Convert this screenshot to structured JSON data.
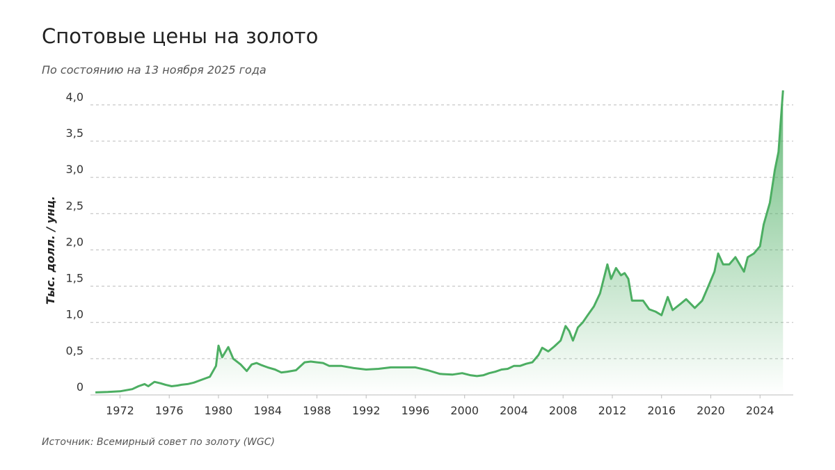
{
  "chart_data": {
    "type": "line",
    "title": "Спотовые цены на золото",
    "subtitle": "По состоянию на 13 ноября 2025 года",
    "y_label": "Тыс. долл. / унц.",
    "source": "Источник: Всемирный совет по золоту (WGC)",
    "color": "#4cae62",
    "x": [
      1970.0,
      1971,
      1972,
      1973,
      1973.5,
      1974,
      1974.3,
      1974.8,
      1975.3,
      1975.7,
      1976.2,
      1976.7,
      1977,
      1977.5,
      1978,
      1978.8,
      1979.3,
      1979.8,
      1980.0,
      1980.3,
      1980.8,
      1981.2,
      1981.8,
      1982.3,
      1982.7,
      1983.1,
      1983.5,
      1984,
      1984.6,
      1985.1,
      1985.6,
      1986.3,
      1987,
      1987.5,
      1988,
      1988.5,
      1989,
      1990,
      1991,
      1992,
      1993,
      1994,
      1995,
      1996,
      1997,
      1998,
      1999,
      1999.8,
      2000.5,
      2001,
      2001.5,
      2002,
      2002.5,
      2003,
      2003.5,
      2004,
      2004.5,
      2005,
      2005.5,
      2006,
      2006.3,
      2006.8,
      2007.3,
      2007.8,
      2008.2,
      2008.5,
      2008.8,
      2009.2,
      2009.6,
      2010,
      2010.5,
      2011,
      2011.6,
      2011.9,
      2012.3,
      2012.7,
      2013,
      2013.3,
      2013.6,
      2014,
      2014.5,
      2015,
      2015.5,
      2016,
      2016.5,
      2016.9,
      2017.5,
      2018,
      2018.7,
      2019.3,
      2019.8,
      2020.3,
      2020.6,
      2021,
      2021.5,
      2022,
      2022.7,
      2023,
      2023.5,
      2024,
      2024.3,
      2024.8,
      2025.2,
      2025.5,
      2025.87
    ],
    "values": [
      0.035,
      0.04,
      0.05,
      0.08,
      0.12,
      0.15,
      0.12,
      0.18,
      0.16,
      0.14,
      0.12,
      0.13,
      0.14,
      0.15,
      0.17,
      0.22,
      0.25,
      0.4,
      0.68,
      0.52,
      0.66,
      0.5,
      0.42,
      0.33,
      0.42,
      0.44,
      0.41,
      0.38,
      0.35,
      0.31,
      0.32,
      0.34,
      0.45,
      0.46,
      0.45,
      0.44,
      0.4,
      0.4,
      0.37,
      0.35,
      0.36,
      0.38,
      0.38,
      0.38,
      0.34,
      0.29,
      0.28,
      0.3,
      0.27,
      0.26,
      0.27,
      0.3,
      0.32,
      0.35,
      0.36,
      0.4,
      0.4,
      0.43,
      0.45,
      0.55,
      0.65,
      0.6,
      0.67,
      0.75,
      0.95,
      0.88,
      0.75,
      0.93,
      1.0,
      1.1,
      1.22,
      1.4,
      1.8,
      1.6,
      1.75,
      1.65,
      1.68,
      1.6,
      1.3,
      1.3,
      1.3,
      1.18,
      1.15,
      1.1,
      1.35,
      1.17,
      1.25,
      1.32,
      1.2,
      1.3,
      1.5,
      1.7,
      1.95,
      1.8,
      1.8,
      1.9,
      1.7,
      1.9,
      1.95,
      2.05,
      2.35,
      2.65,
      3.1,
      3.35,
      4.2
    ],
    "xlim": [
      1969.6,
      2026.7
    ],
    "xticks": [
      1972,
      1976,
      1980,
      1984,
      1988,
      1992,
      1996,
      2000,
      2004,
      2008,
      2012,
      2016,
      2020,
      2024
    ],
    "ylim": [
      0,
      4.2
    ],
    "yticks": [
      0,
      {
        "value": 0.5,
        "label": "0,5"
      },
      {
        "value": 1,
        "label": "1,0"
      },
      {
        "value": 1.5,
        "label": "1,5"
      },
      {
        "value": 2,
        "label": "2,0"
      },
      {
        "value": 2.5,
        "label": "2,5"
      },
      {
        "value": 3,
        "label": "3,0"
      },
      {
        "value": 3.5,
        "label": "3,5"
      },
      {
        "value": 4,
        "label": "4,0"
      }
    ],
    "grid": true
  }
}
